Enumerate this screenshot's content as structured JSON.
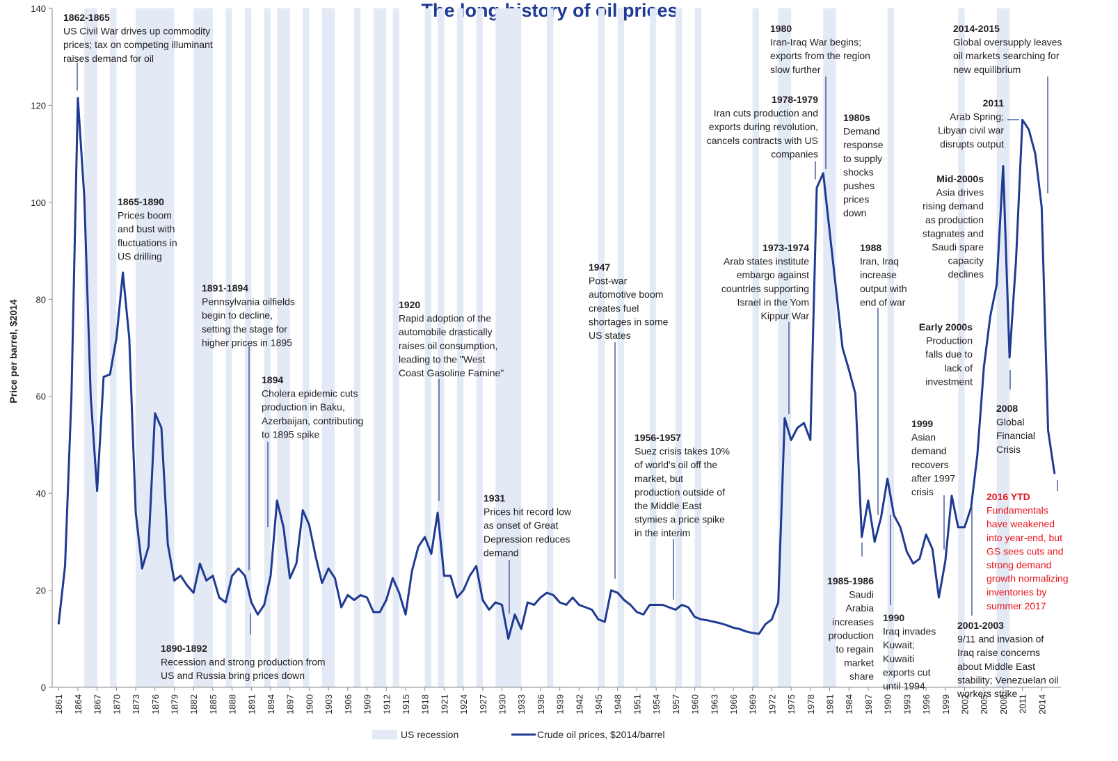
{
  "chart_data": {
    "type": "line",
    "title": "The long history of oil prices",
    "y_label": "Price per barrel, $2014",
    "recession_label": "US recession",
    "xlim": [
      1860,
      2017
    ],
    "ylim": [
      0,
      140
    ],
    "yticks": [
      0,
      20,
      40,
      60,
      80,
      100,
      120,
      140
    ],
    "xticks": [
      1861,
      1864,
      1867,
      1870,
      1873,
      1876,
      1879,
      1882,
      1885,
      1888,
      1891,
      1894,
      1897,
      1900,
      1903,
      1906,
      1909,
      1912,
      1915,
      1918,
      1921,
      1924,
      1927,
      1930,
      1933,
      1936,
      1939,
      1942,
      1945,
      1948,
      1951,
      1954,
      1957,
      1960,
      1963,
      1966,
      1969,
      1972,
      1975,
      1978,
      1981,
      1984,
      1987,
      1990,
      1993,
      1996,
      1999,
      2002,
      2005,
      2008,
      2011,
      2014
    ],
    "x": [
      1861,
      1862,
      1863,
      1864,
      1865,
      1866,
      1867,
      1868,
      1869,
      1870,
      1871,
      1872,
      1873,
      1874,
      1875,
      1876,
      1877,
      1878,
      1879,
      1880,
      1881,
      1882,
      1883,
      1884,
      1885,
      1886,
      1887,
      1888,
      1889,
      1890,
      1891,
      1892,
      1893,
      1894,
      1895,
      1896,
      1897,
      1898,
      1899,
      1900,
      1901,
      1902,
      1903,
      1904,
      1905,
      1906,
      1907,
      1908,
      1909,
      1910,
      1911,
      1912,
      1913,
      1914,
      1915,
      1916,
      1917,
      1918,
      1919,
      1920,
      1921,
      1922,
      1923,
      1924,
      1925,
      1926,
      1927,
      1928,
      1929,
      1930,
      1931,
      1932,
      1933,
      1934,
      1935,
      1936,
      1937,
      1938,
      1939,
      1940,
      1941,
      1942,
      1943,
      1944,
      1945,
      1946,
      1947,
      1948,
      1949,
      1950,
      1951,
      1952,
      1953,
      1954,
      1955,
      1956,
      1957,
      1958,
      1959,
      1960,
      1961,
      1962,
      1963,
      1964,
      1965,
      1966,
      1967,
      1968,
      1969,
      1970,
      1971,
      1972,
      1973,
      1974,
      1975,
      1976,
      1977,
      1978,
      1979,
      1980,
      1981,
      1982,
      1983,
      1984,
      1985,
      1986,
      1987,
      1988,
      1989,
      1990,
      1991,
      1992,
      1993,
      1994,
      1995,
      1996,
      1997,
      1998,
      1999,
      2000,
      2001,
      2002,
      2003,
      2004,
      2005,
      2006,
      2007,
      2008,
      2009,
      2010,
      2011,
      2012,
      2013,
      2014,
      2015,
      2016
    ],
    "series": [
      {
        "name": "Crude oil prices, $2014/barrel",
        "color": "#1f3a93",
        "values": [
          13,
          25,
          60,
          121.5,
          101,
          60,
          40.5,
          64,
          64.5,
          72,
          85.5,
          72,
          36,
          24.5,
          29,
          56.5,
          53.5,
          29.5,
          22,
          23,
          21,
          19.5,
          25.5,
          22,
          23,
          18.5,
          17.5,
          23,
          24.5,
          23,
          17.5,
          15,
          17,
          23,
          38.5,
          33,
          22.5,
          25.5,
          36.5,
          33.5,
          27,
          21.5,
          24.5,
          22.5,
          16.5,
          19,
          18,
          19,
          18.5,
          15.5,
          15.5,
          18,
          22.5,
          19.5,
          15,
          24,
          29,
          31,
          27.5,
          36,
          23,
          23,
          18.5,
          20,
          23,
          25,
          18,
          16,
          17.5,
          17,
          10,
          15,
          12,
          17.5,
          17,
          18.5,
          19.5,
          19,
          17.5,
          17,
          18.5,
          17,
          16.5,
          16,
          14,
          13.5,
          20,
          19.5,
          18,
          17,
          15.5,
          15,
          17,
          17,
          17,
          16.5,
          16,
          17,
          16.5,
          14.5,
          14,
          13.8,
          13.5,
          13.2,
          12.8,
          12.3,
          12,
          11.5,
          11.2,
          11,
          13,
          14,
          17.5,
          55.5,
          51,
          53.5,
          54.5,
          51,
          103,
          106,
          94,
          82,
          70,
          65.5,
          60.5,
          31,
          38.5,
          30,
          35,
          43,
          35.5,
          33,
          28,
          25.5,
          26.5,
          31.5,
          28.5,
          18.5,
          26,
          39.5,
          33,
          33,
          37,
          48,
          66,
          76.5,
          83,
          107.5,
          68,
          88,
          117,
          115,
          110,
          99,
          53,
          44
        ]
      }
    ],
    "recession_color": "#e3e9f5",
    "recessions": [
      [
        1865,
        1867
      ],
      [
        1869,
        1870
      ],
      [
        1873,
        1879
      ],
      [
        1882,
        1885
      ],
      [
        1887,
        1888
      ],
      [
        1890,
        1891
      ],
      [
        1893,
        1894
      ],
      [
        1895,
        1897
      ],
      [
        1899,
        1900
      ],
      [
        1902,
        1904
      ],
      [
        1907,
        1908
      ],
      [
        1910,
        1912
      ],
      [
        1913,
        1914
      ],
      [
        1918,
        1919
      ],
      [
        1920,
        1921
      ],
      [
        1923,
        1924
      ],
      [
        1926,
        1927
      ],
      [
        1929,
        1933
      ],
      [
        1937,
        1938
      ],
      [
        1945,
        1946
      ],
      [
        1948,
        1949
      ],
      [
        1953,
        1954
      ],
      [
        1957,
        1958
      ],
      [
        1960,
        1961
      ],
      [
        1969,
        1970
      ],
      [
        1973,
        1975
      ],
      [
        1980,
        1981
      ],
      [
        1981,
        1982
      ],
      [
        1990,
        1991
      ],
      [
        2001,
        2002
      ],
      [
        2007,
        2009
      ]
    ],
    "annotations": [
      {
        "title": "1862-1865",
        "lines": [
          "US Civil War drives up commodity",
          "prices; tax on competing illuminant",
          "raises demand for oil"
        ]
      },
      {
        "title": "1865-1890",
        "lines": [
          "Prices boom",
          "and bust with",
          "fluctuations in",
          "US drilling"
        ]
      },
      {
        "title": "1891-1894",
        "lines": [
          "Pennsylvania oilfields",
          "begin to decline,",
          "setting the stage for",
          "higher prices in 1895"
        ]
      },
      {
        "title": "1894",
        "lines": [
          "Cholera epidemic cuts",
          "production in Baku,",
          "Azerbaijan, contributing",
          "to 1895 spike"
        ]
      },
      {
        "title": "1890-1892",
        "lines": [
          "Recession and strong production from",
          "US and Russia bring prices down"
        ]
      },
      {
        "title": "1920",
        "lines": [
          "Rapid adoption of the",
          "automobile drastically",
          "raises oil consumption,",
          "leading to the \"West",
          "Coast Gasoline Famine\""
        ]
      },
      {
        "title": "1931",
        "lines": [
          "Prices hit record low",
          "as onset of Great",
          "Depression reduces",
          "demand"
        ]
      },
      {
        "title": "1947",
        "lines": [
          "Post-war",
          "automotive boom",
          "creates fuel",
          "shortages in some",
          "US states"
        ]
      },
      {
        "title": "1956-1957",
        "lines": [
          "Suez crisis takes 10%",
          "of world's oil off the",
          "market, but",
          "production outside of",
          "the Middle East",
          "stymies a price spike",
          "in the interim"
        ]
      },
      {
        "title": "1973-1974",
        "lines": [
          "Arab states institute",
          "embargo against",
          "countries supporting",
          "Israel in the Yom",
          "Kippur War"
        ]
      },
      {
        "title": "1978-1979",
        "lines": [
          "Iran cuts production and",
          "exports during revolution,",
          "cancels contracts with US",
          "companies"
        ]
      },
      {
        "title": "1980",
        "lines": [
          "Iran-Iraq War begins;",
          "exports from the region",
          "slow further"
        ]
      },
      {
        "title": "1980s",
        "lines": [
          "Demand",
          "response",
          "to supply",
          "shocks",
          "pushes",
          "prices",
          "down"
        ]
      },
      {
        "title": "1988",
        "lines": [
          "Iran, Iraq",
          "increase",
          "output with",
          "end of war"
        ]
      },
      {
        "title": "1985-1986",
        "lines": [
          "Saudi",
          "Arabia",
          "increases",
          "production",
          "to regain",
          "market",
          "share"
        ]
      },
      {
        "title": "1990",
        "lines": [
          "Iraq invades",
          "Kuwait;",
          "Kuwaiti",
          "exports cut",
          "until 1994"
        ]
      },
      {
        "title": "2014-2015",
        "lines": [
          "Global oversupply leaves",
          "oil markets searching for",
          "new equilibrium"
        ]
      },
      {
        "title": "2011",
        "lines": [
          "Arab Spring;",
          "Libyan civil war",
          "disrupts output"
        ]
      },
      {
        "title": "Mid-2000s",
        "lines": [
          "Asia drives",
          "rising demand",
          "as production",
          "stagnates and",
          "Saudi spare",
          "capacity",
          "declines"
        ]
      },
      {
        "title": "Early 2000s",
        "lines": [
          "Production",
          "falls due to",
          "lack of",
          "investment"
        ]
      },
      {
        "title": "1999",
        "lines": [
          "Asian",
          "demand",
          "recovers",
          "after 1997",
          "crisis"
        ]
      },
      {
        "title": "2008",
        "lines": [
          "Global",
          "Financial",
          "Crisis"
        ]
      },
      {
        "title": "2016 YTD",
        "color": "#e8141b",
        "lines": [
          "Fundamentals",
          "have weakened",
          "into year-end, but",
          "GS sees cuts and",
          "strong demand",
          "growth normalizing",
          "inventories by",
          "summer 2017"
        ]
      },
      {
        "title": "2001-2003",
        "lines": [
          "9/11 and invasion of",
          "Iraq raise concerns",
          "about Middle East",
          "stability; Venezuelan oil",
          "workers strike"
        ]
      }
    ]
  }
}
